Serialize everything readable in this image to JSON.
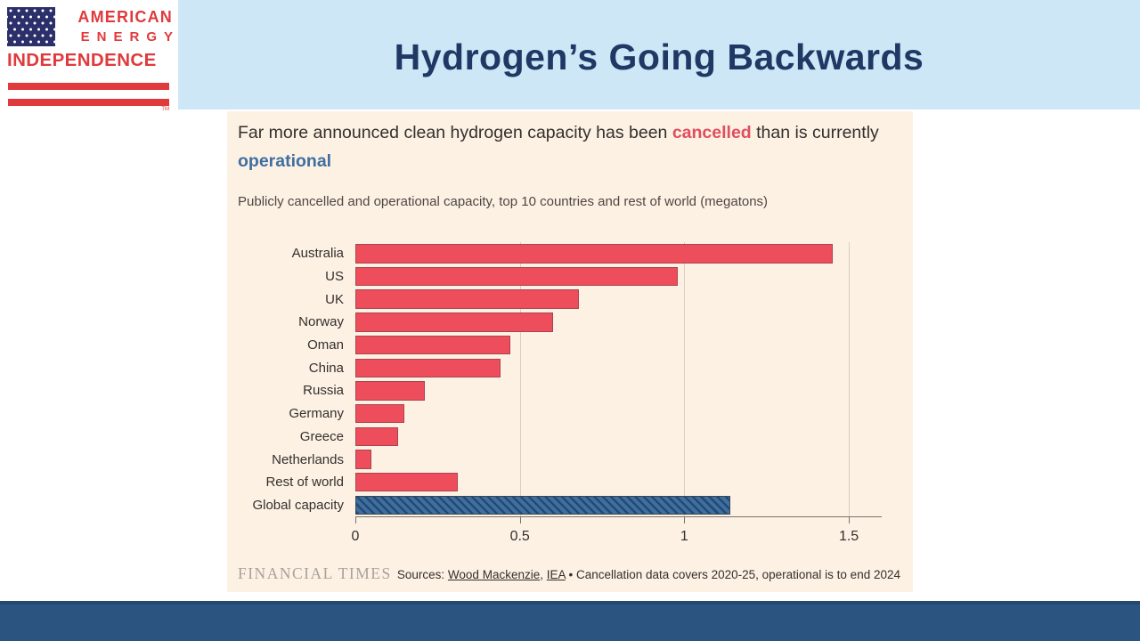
{
  "header": {
    "title": "Hydrogen’s Going Backwards"
  },
  "logo": {
    "line1": "AMERICAN",
    "line2": "ENERGY",
    "line3": "INDEPENDENCE",
    "trademark": "TM"
  },
  "panel": {
    "headline": {
      "part1": "Far more announced clean hydrogen capacity has been ",
      "cancelled": "cancelled",
      "part2": " than is currently ",
      "operational": "operational"
    },
    "subtitle": "Publicly cancelled and operational capacity, top 10 countries and rest of world (megatons)",
    "footer": {
      "wordmark": "FINANCIAL TIMES",
      "sources": {
        "prefix": "Sources: ",
        "source1": "Wood Mackenzie",
        "separator": ", ",
        "source2": "IEA",
        "suffix": " • Cancellation data covers 2020-25, operational is to end 2024"
      }
    }
  },
  "chart_data": {
    "type": "bar",
    "orientation": "horizontal",
    "title": "Far more announced clean hydrogen capacity has been cancelled than is currently operational",
    "subtitle": "Publicly cancelled and operational capacity, top 10 countries and rest of world (megatons)",
    "units": "megatons",
    "categories": [
      "Australia",
      "US",
      "UK",
      "Norway",
      "Oman",
      "China",
      "Russia",
      "Germany",
      "Greece",
      "Netherlands",
      "Rest of world",
      "Global capacity"
    ],
    "values": [
      1.45,
      0.98,
      0.68,
      0.6,
      0.47,
      0.44,
      0.21,
      0.15,
      0.13,
      0.05,
      0.31,
      1.14
    ],
    "row_series": [
      "cancelled",
      "cancelled",
      "cancelled",
      "cancelled",
      "cancelled",
      "cancelled",
      "cancelled",
      "cancelled",
      "cancelled",
      "cancelled",
      "cancelled",
      "operational"
    ],
    "series_legend": [
      {
        "name": "cancelled",
        "color": "#ee4d5c",
        "pattern": "solid"
      },
      {
        "name": "operational",
        "color": "#3d6fa3",
        "pattern": "diagonal-hatch"
      }
    ],
    "xlim": [
      0,
      1.6
    ],
    "xticks": [
      "0",
      "0.5",
      "1",
      "1.5"
    ],
    "xtick_values": [
      0,
      0.5,
      1,
      1.5
    ],
    "grid": "vertical",
    "legend_position": "none"
  },
  "colors": {
    "header_band": "#cde7f7",
    "title_text": "#1f3864",
    "panel_bg": "#fdf1e4",
    "text_dark": "#33302c",
    "text_subtitle": "#4d4742",
    "cancelled_red": "#df4f5c",
    "operational_blue": "#3e6fa0",
    "bar_red": "#ee4d5c",
    "bar_red_border": "#a8454e",
    "bar_blue": "#3d6fa3",
    "bar_blue_stripe": "#27496f",
    "gridline": "#d9cdbf",
    "axis": "#7a736c",
    "ft_wordmark": "#a8a29b",
    "footer_band": "#2b5480",
    "logo_red": "#e03a3c",
    "logo_navy": "#2b2f6a"
  }
}
